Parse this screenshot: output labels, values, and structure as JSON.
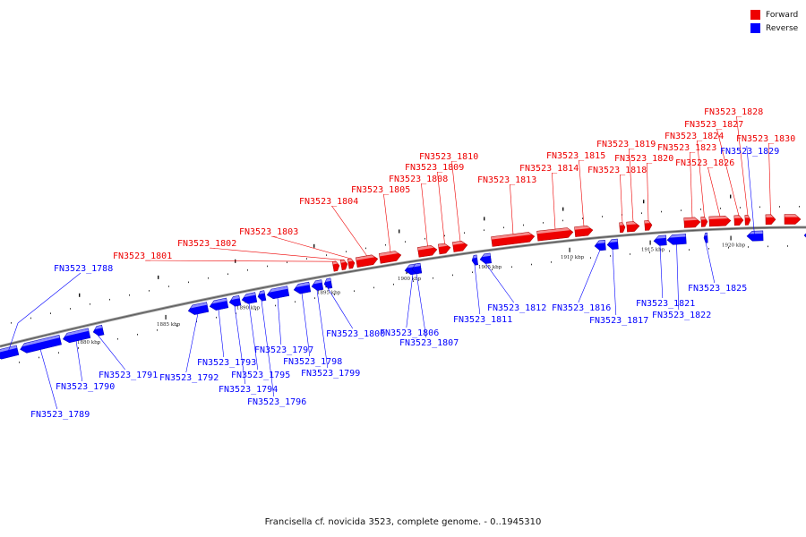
{
  "colors": {
    "forward": "#ee0000",
    "reverse": "#0000ff",
    "backbone": "#777777"
  },
  "legend": {
    "forward": "Forward",
    "reverse": "Reverse"
  },
  "caption": "Francisella cf. novicida 3523, complete genome. - 0..1945310",
  "ticks": [
    "1880 kbp",
    "1885 kbp",
    "1890 kbp",
    "1895 kbp",
    "1900 kbp",
    "1905 kbp",
    "1910 kbp",
    "1915 kbp",
    "1920 kbp"
  ],
  "genes": [
    {
      "name": "FN3523_1788",
      "strand": "reverse"
    },
    {
      "name": "FN3523_1789",
      "strand": "reverse"
    },
    {
      "name": "FN3523_1790",
      "strand": "reverse"
    },
    {
      "name": "FN3523_1791",
      "strand": "reverse"
    },
    {
      "name": "FN3523_1792",
      "strand": "reverse"
    },
    {
      "name": "FN3523_1793",
      "strand": "reverse"
    },
    {
      "name": "FN3523_1794",
      "strand": "reverse"
    },
    {
      "name": "FN3523_1795",
      "strand": "reverse"
    },
    {
      "name": "FN3523_1796",
      "strand": "reverse"
    },
    {
      "name": "FN3523_1797",
      "strand": "reverse"
    },
    {
      "name": "FN3523_1798",
      "strand": "reverse"
    },
    {
      "name": "FN3523_1799",
      "strand": "reverse"
    },
    {
      "name": "FN3523_1800",
      "strand": "reverse"
    },
    {
      "name": "FN3523_1801",
      "strand": "forward"
    },
    {
      "name": "FN3523_1802",
      "strand": "forward"
    },
    {
      "name": "FN3523_1803",
      "strand": "forward"
    },
    {
      "name": "FN3523_1804",
      "strand": "forward"
    },
    {
      "name": "FN3523_1805",
      "strand": "forward"
    },
    {
      "name": "FN3523_1806",
      "strand": "reverse"
    },
    {
      "name": "FN3523_1807",
      "strand": "reverse"
    },
    {
      "name": "FN3523_1808",
      "strand": "forward"
    },
    {
      "name": "FN3523_1809",
      "strand": "forward"
    },
    {
      "name": "FN3523_1810",
      "strand": "forward"
    },
    {
      "name": "FN3523_1811",
      "strand": "reverse"
    },
    {
      "name": "FN3523_1812",
      "strand": "reverse"
    },
    {
      "name": "FN3523_1813",
      "strand": "forward"
    },
    {
      "name": "FN3523_1814",
      "strand": "forward"
    },
    {
      "name": "FN3523_1815",
      "strand": "forward"
    },
    {
      "name": "FN3523_1816",
      "strand": "reverse"
    },
    {
      "name": "FN3523_1817",
      "strand": "reverse"
    },
    {
      "name": "FN3523_1818",
      "strand": "forward"
    },
    {
      "name": "FN3523_1819",
      "strand": "forward"
    },
    {
      "name": "FN3523_1820",
      "strand": "forward"
    },
    {
      "name": "FN3523_1821",
      "strand": "reverse"
    },
    {
      "name": "FN3523_1822",
      "strand": "reverse"
    },
    {
      "name": "FN3523_1823",
      "strand": "forward"
    },
    {
      "name": "FN3523_1824",
      "strand": "forward"
    },
    {
      "name": "FN3523_1825",
      "strand": "reverse"
    },
    {
      "name": "FN3523_1826",
      "strand": "forward"
    },
    {
      "name": "FN3523_1827",
      "strand": "forward"
    },
    {
      "name": "FN3523_1828",
      "strand": "forward"
    },
    {
      "name": "FN3523_1829",
      "strand": "reverse"
    },
    {
      "name": "FN3523_1830",
      "strand": "forward"
    }
  ]
}
